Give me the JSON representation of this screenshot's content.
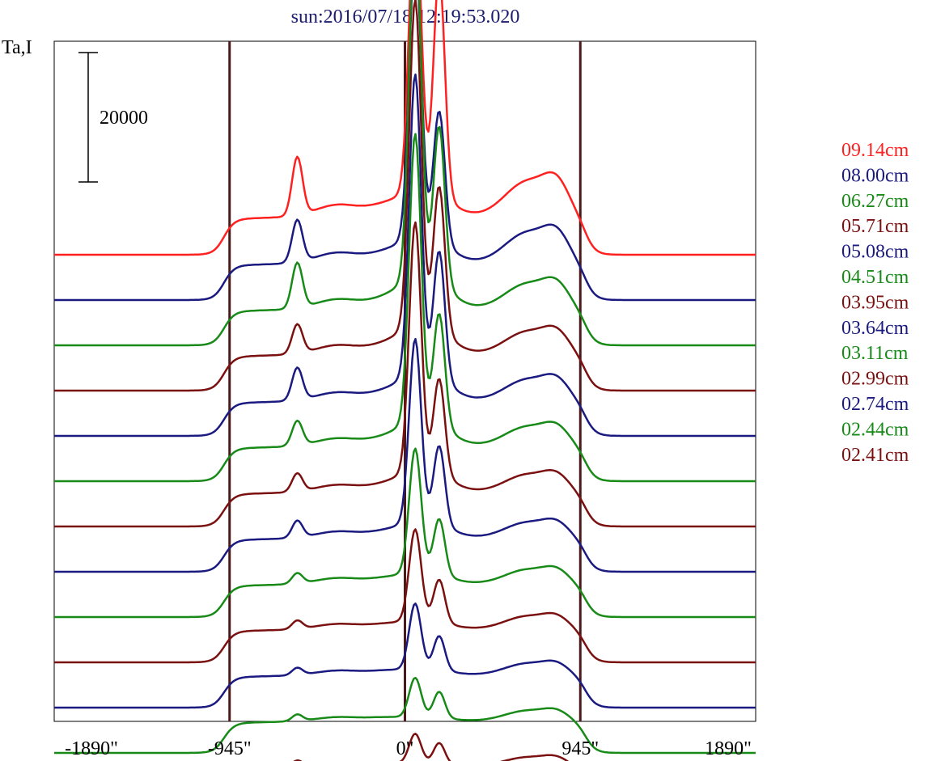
{
  "chart_data": {
    "type": "line",
    "title": "sun:2016/07/18 12:19:53.020",
    "ylabel": "Ta,I",
    "xlabel": "",
    "xlim": [
      -1890,
      1890
    ],
    "x_ticks": [
      -1890,
      -945,
      0,
      945,
      1890
    ],
    "x_tick_labels": [
      "-1890\"",
      "-945\"",
      "0\"",
      "945\"",
      "1890\""
    ],
    "vertical_lines": [
      -945,
      0,
      945
    ],
    "scale_bar": {
      "label": "20000",
      "value": 20000
    },
    "legend_position": "right",
    "grid": false,
    "stacked": true,
    "colors": {
      "red": "#ff2020",
      "blue": "#1a1a80",
      "green": "#188a18",
      "darkred": "#7a1010",
      "frame": "#000000",
      "vline": "#4a1a1a"
    },
    "series": [
      {
        "name": "09.14cm",
        "color": "#ff2020",
        "base": 66000,
        "peaks": {
          "disk": 6000,
          "left": 9000,
          "center": 44000,
          "right": 34000,
          "bumpR": 5500,
          "bumpL": 1800
        }
      },
      {
        "name": "08.00cm",
        "color": "#1a1a80",
        "base": 59000,
        "peaks": {
          "disk": 5800,
          "left": 6500,
          "center": 44000,
          "right": 20000,
          "bumpR": 4800,
          "bumpL": 1600
        }
      },
      {
        "name": "06.27cm",
        "color": "#188a18",
        "base": 52000,
        "peaks": {
          "disk": 5700,
          "left": 7000,
          "center": 54000,
          "right": 24000,
          "bumpR": 4000,
          "bumpL": 1500
        }
      },
      {
        "name": "05.71cm",
        "color": "#7a1010",
        "base": 45000,
        "peaks": {
          "disk": 5700,
          "left": 4500,
          "center": 50000,
          "right": 22000,
          "bumpR": 3600,
          "bumpL": 1400
        }
      },
      {
        "name": "05.08cm",
        "color": "#1a1a80",
        "base": 38000,
        "peaks": {
          "disk": 5500,
          "left": 5000,
          "center": 46000,
          "right": 19500,
          "bumpR": 3400,
          "bumpL": 1300
        }
      },
      {
        "name": "04.51cm",
        "color": "#188a18",
        "base": 31000,
        "peaks": {
          "disk": 5500,
          "left": 3800,
          "center": 44000,
          "right": 17000,
          "bumpR": 3100,
          "bumpL": 1200
        }
      },
      {
        "name": "03.95cm",
        "color": "#7a1010",
        "base": 24000,
        "peaks": {
          "disk": 5400,
          "left": 2800,
          "center": 38000,
          "right": 14500,
          "bumpR": 2800,
          "bumpL": 1100
        }
      },
      {
        "name": "03.64cm",
        "color": "#1a1a80",
        "base": 17000,
        "peaks": {
          "disk": 5300,
          "left": 2600,
          "center": 28000,
          "right": 12000,
          "bumpR": 2500,
          "bumpL": 1000
        }
      },
      {
        "name": "03.11cm",
        "color": "#188a18",
        "base": 10000,
        "peaks": {
          "disk": 5200,
          "left": 1600,
          "center": 19000,
          "right": 8500,
          "bumpR": 2300,
          "bumpL": 900
        }
      },
      {
        "name": "02.99cm",
        "color": "#7a1010",
        "base": 3000,
        "peaks": {
          "disk": 5200,
          "left": 1300,
          "center": 14000,
          "right": 6500,
          "bumpR": 2100,
          "bumpL": 800
        }
      },
      {
        "name": "02.74cm",
        "color": "#1a1a80",
        "base": -4000,
        "peaks": {
          "disk": 5100,
          "left": 1100,
          "center": 10000,
          "right": 5200,
          "bumpR": 1900,
          "bumpL": 700
        }
      },
      {
        "name": "02.44cm",
        "color": "#188a18",
        "base": -11000,
        "peaks": {
          "disk": 5000,
          "left": 1000,
          "center": 6000,
          "right": 4000,
          "bumpR": 1700,
          "bumpL": 600
        }
      },
      {
        "name": "02.41cm",
        "color": "#7a1010",
        "base": -18000,
        "peaks": {
          "disk": 5000,
          "left": 900,
          "center": 4500,
          "right": 3200,
          "bumpR": 1500,
          "bumpL": 500
        }
      }
    ]
  }
}
